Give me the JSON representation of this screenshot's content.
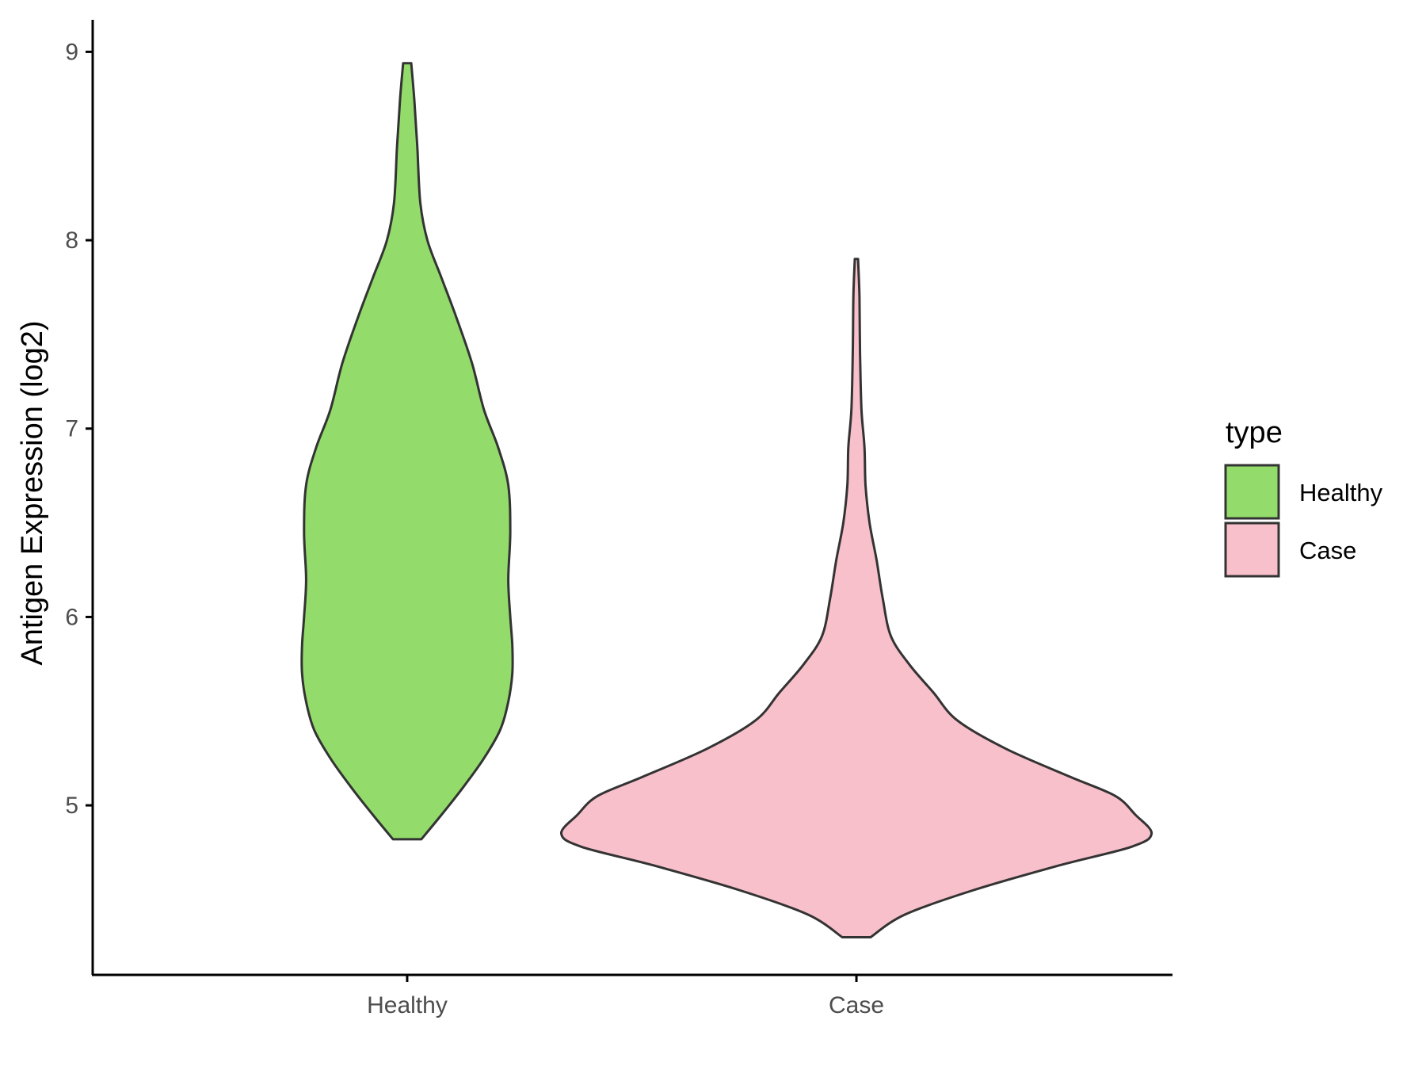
{
  "chart_data": {
    "type": "violin",
    "xlabel": "",
    "ylabel": "Antigen Expression (log2)",
    "ylim": [
      4.1,
      9.17
    ],
    "y_ticks": [
      5,
      6,
      7,
      8,
      9
    ],
    "categories": [
      "Healthy",
      "Case"
    ],
    "grid": false,
    "legend": {
      "title": "type",
      "position": "right",
      "entries": [
        {
          "label": "Healthy",
          "color": "#93DC6B"
        },
        {
          "label": "Case",
          "color": "#F8C0CB"
        }
      ]
    },
    "series": [
      {
        "category": "Healthy",
        "color": "#93DC6B",
        "min": 4.82,
        "max": 8.94,
        "density_profile": [
          [
            4.82,
            0.07
          ],
          [
            4.95,
            0.17
          ],
          [
            5.1,
            0.28
          ],
          [
            5.25,
            0.38
          ],
          [
            5.4,
            0.46
          ],
          [
            5.55,
            0.5
          ],
          [
            5.7,
            0.52
          ],
          [
            5.85,
            0.52
          ],
          [
            6.0,
            0.51
          ],
          [
            6.2,
            0.5
          ],
          [
            6.45,
            0.51
          ],
          [
            6.7,
            0.5
          ],
          [
            6.9,
            0.45
          ],
          [
            7.1,
            0.38
          ],
          [
            7.35,
            0.32
          ],
          [
            7.6,
            0.24
          ],
          [
            7.8,
            0.17
          ],
          [
            8.0,
            0.1
          ],
          [
            8.2,
            0.065
          ],
          [
            8.5,
            0.05
          ],
          [
            8.75,
            0.035
          ],
          [
            8.94,
            0.02
          ]
        ]
      },
      {
        "category": "Case",
        "color": "#F8C0CB",
        "min": 4.3,
        "max": 7.9,
        "density_profile": [
          [
            4.3,
            0.07
          ],
          [
            4.42,
            0.24
          ],
          [
            4.55,
            0.58
          ],
          [
            4.68,
            1.0
          ],
          [
            4.78,
            1.36
          ],
          [
            4.85,
            1.46
          ],
          [
            4.95,
            1.38
          ],
          [
            5.05,
            1.28
          ],
          [
            5.15,
            1.06
          ],
          [
            5.3,
            0.74
          ],
          [
            5.45,
            0.5
          ],
          [
            5.6,
            0.38
          ],
          [
            5.75,
            0.26
          ],
          [
            5.9,
            0.17
          ],
          [
            6.1,
            0.13
          ],
          [
            6.3,
            0.1
          ],
          [
            6.5,
            0.065
          ],
          [
            6.7,
            0.045
          ],
          [
            6.9,
            0.04
          ],
          [
            7.1,
            0.025
          ],
          [
            7.4,
            0.018
          ],
          [
            7.7,
            0.015
          ],
          [
            7.9,
            0.008
          ]
        ]
      }
    ]
  }
}
